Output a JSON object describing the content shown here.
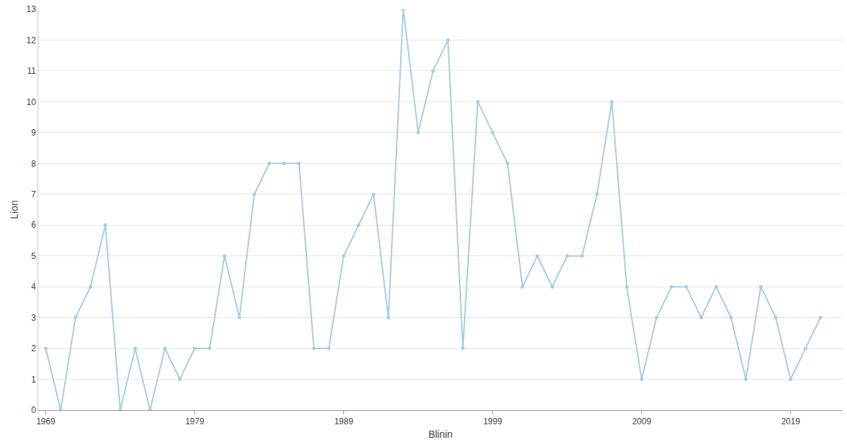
{
  "chart_data": {
    "type": "line",
    "x_label": "Blinin",
    "y_label": "Lion",
    "x": [
      1969,
      1970,
      1971,
      1972,
      1973,
      1974,
      1975,
      1976,
      1977,
      1978,
      1979,
      1980,
      1981,
      1982,
      1983,
      1984,
      1985,
      1986,
      1987,
      1988,
      1989,
      1990,
      1991,
      1992,
      1993,
      1994,
      1995,
      1996,
      1997,
      1998,
      1999,
      2000,
      2001,
      2002,
      2003,
      2004,
      2005,
      2006,
      2007,
      2008,
      2009,
      2010,
      2011,
      2012,
      2013,
      2014,
      2015,
      2016,
      2017,
      2018,
      2019,
      2020,
      2021
    ],
    "values": [
      2,
      0,
      3,
      4,
      6,
      0,
      2,
      0,
      2,
      1,
      2,
      2,
      5,
      3,
      7,
      8,
      8,
      8,
      2,
      2,
      5,
      6,
      7,
      3,
      13,
      9,
      11,
      12,
      2,
      10,
      9,
      8,
      4,
      5,
      4,
      5,
      5,
      7,
      10,
      4,
      1,
      3,
      4,
      4,
      3,
      4,
      3,
      1,
      4,
      3,
      1,
      2,
      3
    ],
    "color": "#a6cee3",
    "marker": "circle",
    "xlim": [
      1968.5,
      2022.5
    ],
    "xticks": [
      1969,
      1979,
      1989,
      1999,
      2009,
      2019
    ],
    "ylim": [
      0,
      13
    ],
    "yticks": [
      0,
      1,
      2,
      3,
      4,
      5,
      6,
      7,
      8,
      9,
      10,
      11,
      12,
      13
    ],
    "grid": true
  }
}
